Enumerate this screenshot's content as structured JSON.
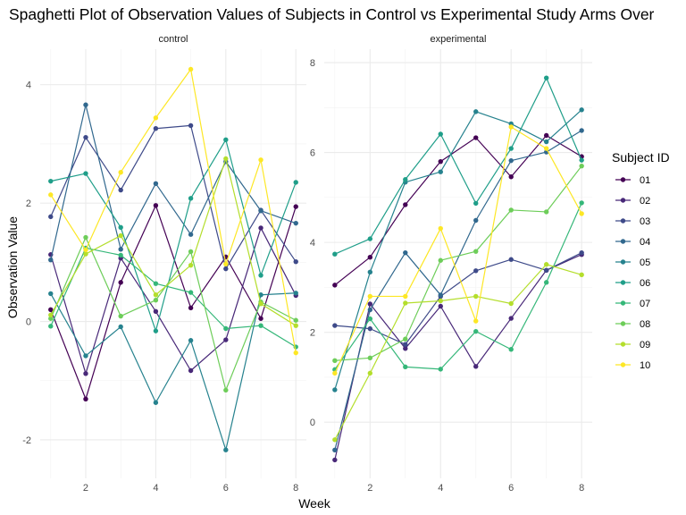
{
  "chart_data": {
    "type": "line",
    "title": "Spaghetti Plot of Observation Values of Subjects in Control vs Experimental Study Arms Over",
    "xlabel": "Week",
    "ylabel": "Observation Value",
    "grid": true,
    "legend": {
      "title": "Subject ID",
      "position": "right"
    },
    "x": [
      1,
      2,
      3,
      4,
      5,
      6,
      7,
      8
    ],
    "subjects": [
      "01",
      "02",
      "03",
      "04",
      "05",
      "06",
      "07",
      "08",
      "09",
      "10"
    ],
    "colors": [
      "#440154",
      "#482878",
      "#3E4A89",
      "#31688E",
      "#26828E",
      "#1F9E89",
      "#35B779",
      "#6DCD59",
      "#B4DE2C",
      "#FDE725"
    ],
    "panels": [
      {
        "label": "control",
        "xlim": [
          0.7,
          8.3
        ],
        "ylim": [
          -2.65,
          4.6
        ],
        "xticks": [
          2,
          4,
          6,
          8
        ],
        "yticks": [
          -2,
          0,
          2,
          4
        ],
        "series": [
          {
            "name": "01",
            "values": [
              0.2,
              -1.31,
              0.66,
              1.96,
              0.23,
              1.09,
              0.05,
              1.94
            ]
          },
          {
            "name": "02",
            "values": [
              1.13,
              -0.88,
              1.07,
              0.17,
              -0.83,
              -0.31,
              1.58,
              0.44
            ]
          },
          {
            "name": "03",
            "values": [
              1.77,
              3.11,
              2.22,
              3.26,
              3.31,
              0.89,
              1.88,
              1.01
            ]
          },
          {
            "name": "04",
            "values": [
              1.04,
              3.66,
              1.22,
              2.33,
              1.47,
              2.7,
              1.87,
              1.66
            ]
          },
          {
            "name": "05",
            "values": [
              0.47,
              -0.58,
              -0.09,
              -1.37,
              -0.32,
              -2.17,
              0.45,
              0.48
            ]
          },
          {
            "name": "06",
            "values": [
              2.37,
              2.5,
              1.59,
              -0.16,
              2.08,
              3.07,
              0.78,
              2.35
            ]
          },
          {
            "name": "07",
            "values": [
              -0.08,
              1.24,
              1.12,
              0.64,
              0.49,
              -0.12,
              -0.07,
              -0.43
            ]
          },
          {
            "name": "08",
            "values": [
              0.05,
              1.42,
              0.09,
              0.36,
              1.18,
              -1.16,
              0.33,
              0.02
            ]
          },
          {
            "name": "09",
            "values": [
              0.11,
              1.14,
              1.45,
              0.45,
              0.95,
              2.75,
              0.3,
              -0.07
            ]
          },
          {
            "name": "10",
            "values": [
              2.14,
              1.21,
              2.52,
              3.44,
              4.26,
              0.97,
              2.73,
              -0.53
            ]
          }
        ]
      },
      {
        "label": "experimental",
        "xlim": [
          0.7,
          8.3
        ],
        "ylim": [
          -1.25,
          8.3
        ],
        "xticks": [
          2,
          4,
          6,
          8
        ],
        "yticks": [
          0,
          2,
          4,
          6,
          8
        ],
        "series": [
          {
            "name": "01",
            "values": [
              3.05,
              3.67,
              4.84,
              5.8,
              6.33,
              5.46,
              6.38,
              5.91
            ]
          },
          {
            "name": "02",
            "values": [
              -0.84,
              2.63,
              1.64,
              2.58,
              1.24,
              2.31,
              3.38,
              3.73
            ]
          },
          {
            "name": "03",
            "values": [
              2.15,
              2.08,
              1.73,
              2.8,
              3.37,
              3.62,
              3.38,
              3.77
            ]
          },
          {
            "name": "04",
            "values": [
              -0.62,
              2.5,
              3.77,
              2.83,
              4.49,
              5.82,
              6.01,
              6.49
            ]
          },
          {
            "name": "05",
            "values": [
              0.72,
              3.34,
              5.34,
              5.57,
              6.91,
              6.64,
              6.24,
              6.95
            ]
          },
          {
            "name": "06",
            "values": [
              3.74,
              4.08,
              5.4,
              6.41,
              4.87,
              6.09,
              7.66,
              5.83
            ]
          },
          {
            "name": "07",
            "values": [
              1.17,
              2.3,
              1.23,
              1.18,
              2.02,
              1.62,
              3.11,
              4.88
            ]
          },
          {
            "name": "08",
            "values": [
              1.37,
              1.43,
              1.85,
              3.6,
              3.8,
              4.72,
              4.68,
              5.7
            ]
          },
          {
            "name": "09",
            "values": [
              -0.39,
              1.09,
              2.65,
              2.7,
              2.8,
              2.64,
              3.51,
              3.28
            ]
          },
          {
            "name": "10",
            "values": [
              1.09,
              2.8,
              2.8,
              4.31,
              2.25,
              6.57,
              6.09,
              4.64
            ]
          }
        ]
      }
    ]
  }
}
